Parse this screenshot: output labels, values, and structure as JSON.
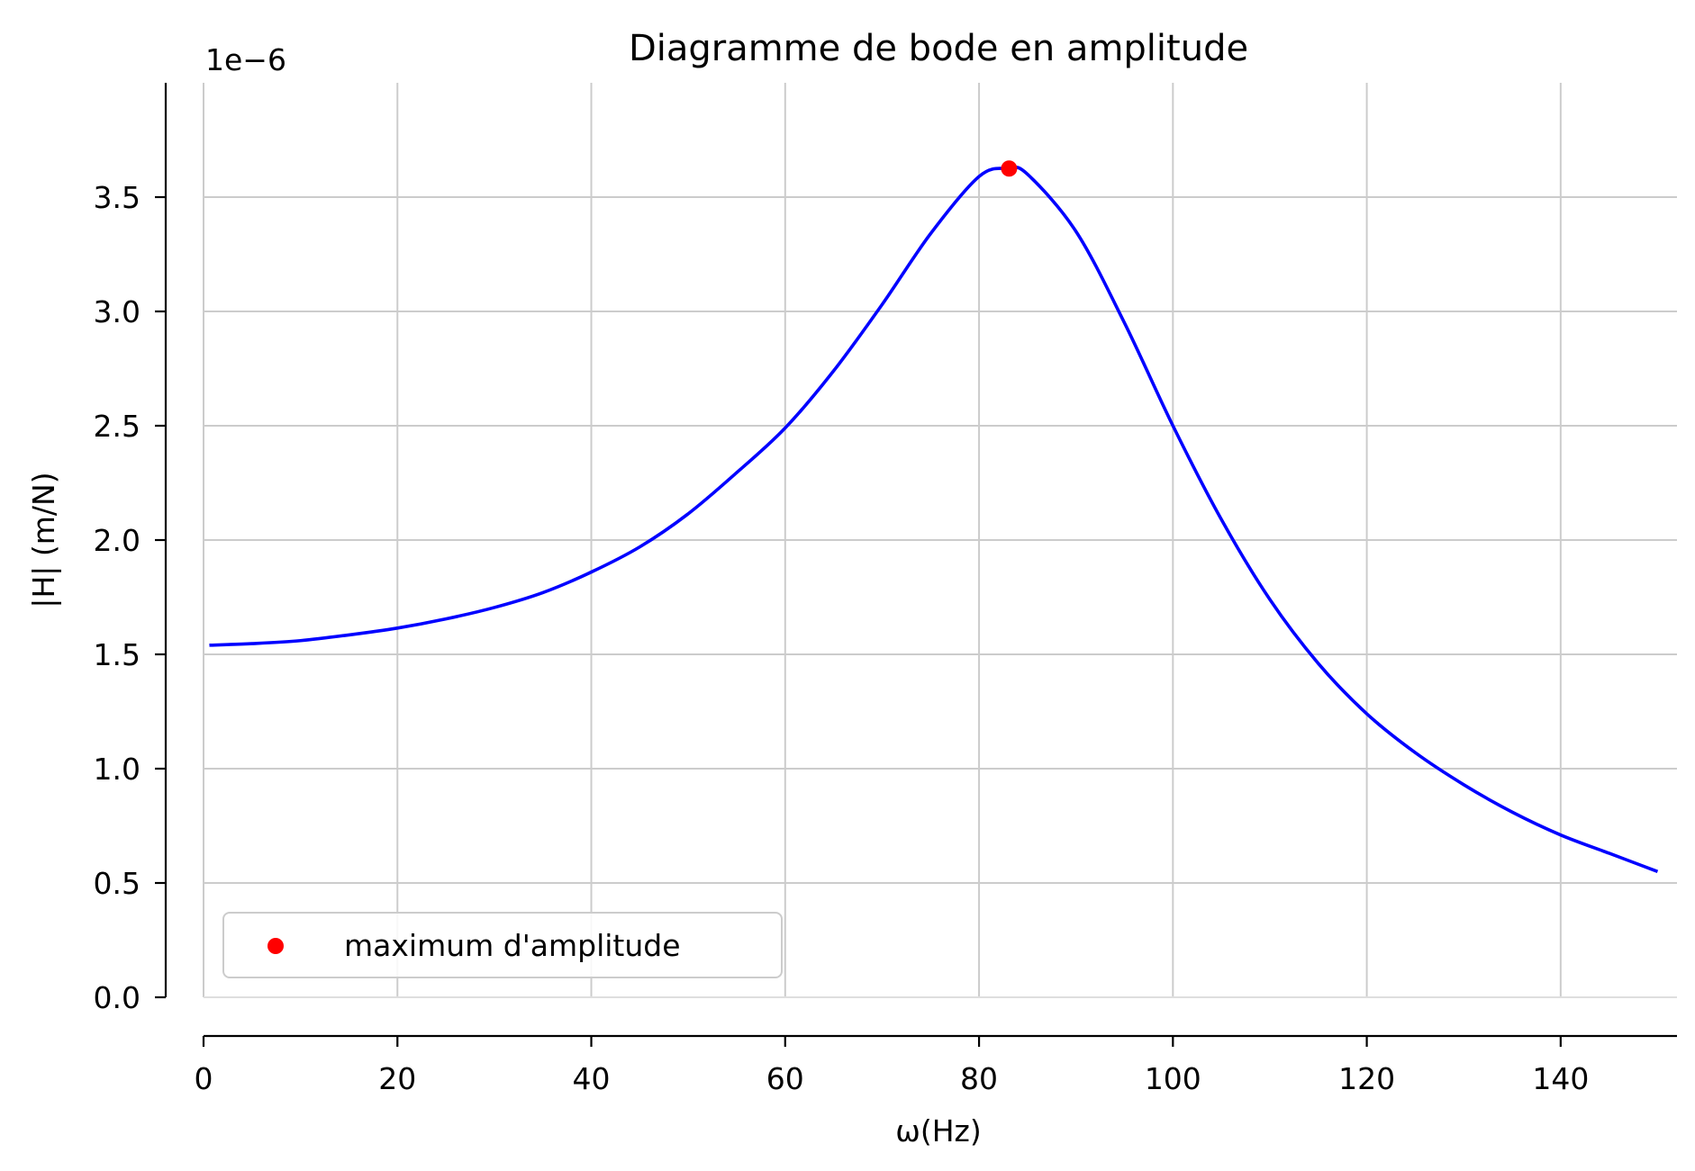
{
  "chart_data": {
    "type": "line",
    "title": "Diagramme de bode en amplitude",
    "xlabel": "ω(Hz)",
    "ylabel": "|H| (m/N)",
    "y_offset_label": "1e−6",
    "y_multiplier": 1e-06,
    "xlim": [
      0,
      152
    ],
    "ylim": [
      0,
      4.0
    ],
    "xticks": [
      0,
      20,
      40,
      60,
      80,
      100,
      120,
      140
    ],
    "xtick_labels": [
      "0",
      "20",
      "40",
      "60",
      "80",
      "100",
      "120",
      "140"
    ],
    "yticks": [
      0,
      0.5,
      1.0,
      1.5,
      2.0,
      2.5,
      3.0,
      3.5
    ],
    "ytick_labels": [
      "0.0",
      "0.5",
      "1.0",
      "1.5",
      "2.0",
      "2.5",
      "3.0",
      "3.5"
    ],
    "grid": true,
    "legend_position": "lower-left",
    "colors": {
      "line": "#0000ff",
      "marker": "#ff0000",
      "grid": "#cccccc",
      "axis": "#000000"
    },
    "series": [
      {
        "kind": "line",
        "x": [
          0.6,
          5,
          10,
          15,
          20,
          25,
          30,
          35,
          40,
          45,
          50,
          55,
          60,
          65,
          70,
          75,
          80,
          83,
          85,
          90,
          95,
          100,
          105,
          110,
          115,
          120,
          125,
          130,
          135,
          140,
          145,
          150
        ],
        "y": [
          1.54,
          1.547,
          1.56,
          1.585,
          1.615,
          1.655,
          1.705,
          1.77,
          1.86,
          1.97,
          2.115,
          2.295,
          2.49,
          2.74,
          3.03,
          3.34,
          3.59,
          3.625,
          3.6,
          3.35,
          2.95,
          2.5,
          2.09,
          1.74,
          1.46,
          1.24,
          1.07,
          0.93,
          0.81,
          0.71,
          0.63,
          0.55
        ]
      },
      {
        "kind": "point",
        "name": "maximum d'amplitude",
        "x": [
          83.1
        ],
        "y": [
          3.625
        ]
      }
    ]
  }
}
